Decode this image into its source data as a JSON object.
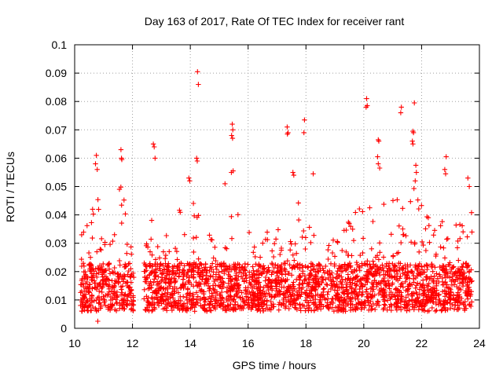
{
  "chart_data": {
    "type": "scatter",
    "title": "Day 163 of 2017, Rate Of TEC Index for receiver rant",
    "xlabel": "GPS time / hours",
    "ylabel": "ROTI / TECUs",
    "xlim": [
      10,
      24
    ],
    "ylim": [
      0,
      0.1
    ],
    "x_ticks": [
      "10",
      "12",
      "14",
      "16",
      "18",
      "20",
      "22",
      "24"
    ],
    "y_ticks": [
      "0",
      "0.01",
      "0.02",
      "0.03",
      "0.04",
      "0.05",
      "0.06",
      "0.07",
      "0.08",
      "0.09",
      "0.1"
    ],
    "grid": true,
    "marker": "+",
    "series_color": "#ff0000",
    "data_gap": [
      12.05,
      12.4
    ],
    "envelope": [
      {
        "x": 10.2,
        "peak": 0.033
      },
      {
        "x": 10.5,
        "peak": 0.046
      },
      {
        "x": 10.8,
        "peak": 0.047
      },
      {
        "x": 11.0,
        "peak": 0.03
      },
      {
        "x": 11.3,
        "peak": 0.032
      },
      {
        "x": 11.6,
        "peak": 0.052
      },
      {
        "x": 11.9,
        "peak": 0.036
      },
      {
        "x": 12.0,
        "peak": 0.026
      },
      {
        "x": 12.5,
        "peak": 0.05
      },
      {
        "x": 12.8,
        "peak": 0.047
      },
      {
        "x": 13.2,
        "peak": 0.036
      },
      {
        "x": 13.6,
        "peak": 0.042
      },
      {
        "x": 14.0,
        "peak": 0.044
      },
      {
        "x": 14.3,
        "peak": 0.046
      },
      {
        "x": 14.7,
        "peak": 0.033
      },
      {
        "x": 15.0,
        "peak": 0.026
      },
      {
        "x": 15.3,
        "peak": 0.04
      },
      {
        "x": 15.6,
        "peak": 0.043
      },
      {
        "x": 16.0,
        "peak": 0.037
      },
      {
        "x": 16.4,
        "peak": 0.033
      },
      {
        "x": 16.8,
        "peak": 0.04
      },
      {
        "x": 17.2,
        "peak": 0.039
      },
      {
        "x": 17.5,
        "peak": 0.05
      },
      {
        "x": 17.9,
        "peak": 0.046
      },
      {
        "x": 18.3,
        "peak": 0.037
      },
      {
        "x": 18.7,
        "peak": 0.03
      },
      {
        "x": 19.0,
        "peak": 0.032
      },
      {
        "x": 19.4,
        "peak": 0.037
      },
      {
        "x": 19.8,
        "peak": 0.042
      },
      {
        "x": 20.2,
        "peak": 0.045
      },
      {
        "x": 20.6,
        "peak": 0.048
      },
      {
        "x": 21.0,
        "peak": 0.047
      },
      {
        "x": 21.4,
        "peak": 0.045
      },
      {
        "x": 21.8,
        "peak": 0.052
      },
      {
        "x": 22.2,
        "peak": 0.04
      },
      {
        "x": 22.6,
        "peak": 0.04
      },
      {
        "x": 23.0,
        "peak": 0.037
      },
      {
        "x": 23.4,
        "peak": 0.04
      },
      {
        "x": 23.75,
        "peak": 0.045
      }
    ],
    "outliers": [
      {
        "x": 10.75,
        "y": 0.061
      },
      {
        "x": 10.72,
        "y": 0.058
      },
      {
        "x": 10.78,
        "y": 0.056
      },
      {
        "x": 10.62,
        "y": 0.042
      },
      {
        "x": 10.8,
        "y": 0.0025
      },
      {
        "x": 11.6,
        "y": 0.063
      },
      {
        "x": 11.62,
        "y": 0.06
      },
      {
        "x": 11.63,
        "y": 0.0595
      },
      {
        "x": 11.55,
        "y": 0.049
      },
      {
        "x": 12.72,
        "y": 0.065
      },
      {
        "x": 12.75,
        "y": 0.064
      },
      {
        "x": 12.78,
        "y": 0.06
      },
      {
        "x": 14.25,
        "y": 0.0905
      },
      {
        "x": 14.28,
        "y": 0.086
      },
      {
        "x": 14.22,
        "y": 0.06
      },
      {
        "x": 14.24,
        "y": 0.059
      },
      {
        "x": 13.95,
        "y": 0.053
      },
      {
        "x": 13.98,
        "y": 0.052
      },
      {
        "x": 15.2,
        "y": 0.051
      },
      {
        "x": 15.45,
        "y": 0.072
      },
      {
        "x": 15.47,
        "y": 0.07
      },
      {
        "x": 15.43,
        "y": 0.068
      },
      {
        "x": 15.46,
        "y": 0.067
      },
      {
        "x": 15.48,
        "y": 0.0555
      },
      {
        "x": 15.42,
        "y": 0.055
      },
      {
        "x": 17.35,
        "y": 0.071
      },
      {
        "x": 17.38,
        "y": 0.069
      },
      {
        "x": 17.36,
        "y": 0.0685
      },
      {
        "x": 17.55,
        "y": 0.055
      },
      {
        "x": 17.58,
        "y": 0.054
      },
      {
        "x": 17.95,
        "y": 0.0735
      },
      {
        "x": 17.93,
        "y": 0.069
      },
      {
        "x": 18.25,
        "y": 0.0545
      },
      {
        "x": 20.1,
        "y": 0.081
      },
      {
        "x": 20.12,
        "y": 0.0785
      },
      {
        "x": 20.08,
        "y": 0.078
      },
      {
        "x": 20.5,
        "y": 0.0665
      },
      {
        "x": 20.52,
        "y": 0.066
      },
      {
        "x": 20.48,
        "y": 0.0605
      },
      {
        "x": 20.5,
        "y": 0.058
      },
      {
        "x": 20.55,
        "y": 0.0565
      },
      {
        "x": 21.3,
        "y": 0.078
      },
      {
        "x": 21.28,
        "y": 0.076
      },
      {
        "x": 21.75,
        "y": 0.0795
      },
      {
        "x": 21.7,
        "y": 0.0695
      },
      {
        "x": 21.72,
        "y": 0.069
      },
      {
        "x": 21.68,
        "y": 0.066
      },
      {
        "x": 21.7,
        "y": 0.065
      },
      {
        "x": 21.8,
        "y": 0.0575
      },
      {
        "x": 21.82,
        "y": 0.055
      },
      {
        "x": 21.78,
        "y": 0.052
      },
      {
        "x": 22.85,
        "y": 0.0605
      },
      {
        "x": 22.8,
        "y": 0.056
      },
      {
        "x": 22.83,
        "y": 0.0545
      },
      {
        "x": 23.6,
        "y": 0.053
      },
      {
        "x": 23.65,
        "y": 0.05
      }
    ]
  }
}
